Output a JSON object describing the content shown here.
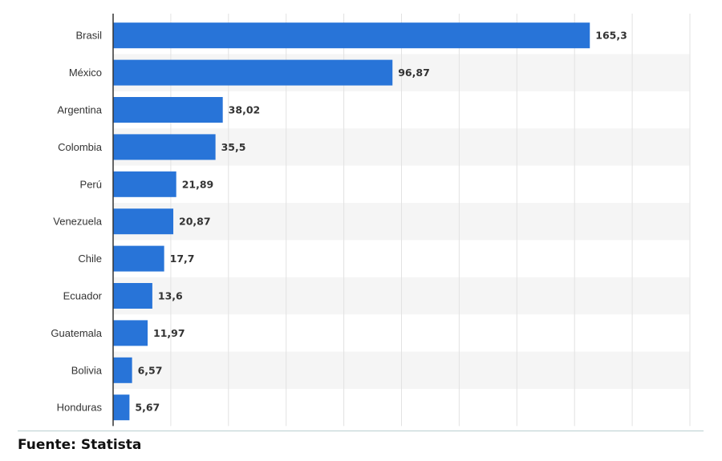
{
  "chart_data": {
    "type": "bar",
    "orientation": "horizontal",
    "categories": [
      "Brasil",
      "México",
      "Argentina",
      "Colombia",
      "Perú",
      "Venezuela",
      "Chile",
      "Ecuador",
      "Guatemala",
      "Bolivia",
      "Honduras"
    ],
    "values": [
      165.3,
      96.87,
      38.02,
      35.5,
      21.89,
      20.87,
      17.7,
      13.6,
      11.97,
      6.57,
      5.67
    ],
    "value_labels": [
      "165,3",
      "96,87",
      "38,02",
      "35,5",
      "21,89",
      "20,87",
      "17,7",
      "13,6",
      "11,97",
      "6,57",
      "5,67"
    ],
    "title": "",
    "xlabel": "",
    "ylabel": "",
    "xlim": [
      0,
      200
    ],
    "grid": true,
    "bar_color": "#2874d8",
    "stripe_color": "#f5f5f5"
  },
  "footer": {
    "source": "Fuente: Statista"
  }
}
